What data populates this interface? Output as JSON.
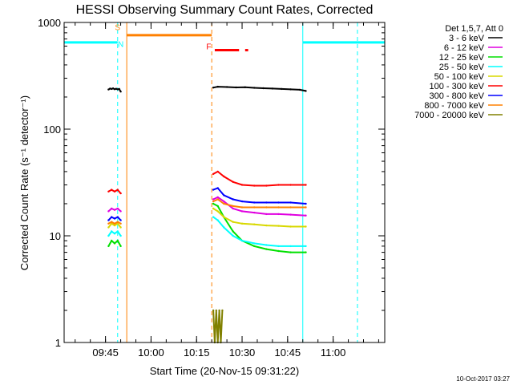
{
  "chart_data": {
    "type": "line",
    "title": "HESSI Observing Summary Count Rates, Corrected",
    "xlabel": "Start Time (20-Nov-15 09:31:22)",
    "ylabel": "Corrected Count Rate (s⁻¹ detector⁻¹)",
    "x_unit": "minutes",
    "xlim": [
      "09:31:22",
      "11:17:00"
    ],
    "ylim": [
      1,
      1000
    ],
    "yscale": "log",
    "x_ticks": [
      "09:45",
      "10:00",
      "10:15",
      "10:30",
      "10:45",
      "11:00"
    ],
    "y_ticks": [
      "1",
      "10",
      "100",
      "1000"
    ],
    "grid": false,
    "legend": {
      "placement": "right",
      "header": "Det 1,5,7, Att 0",
      "entries": [
        {
          "label": "3 - 6 keV",
          "color": "#000000"
        },
        {
          "label": "6 - 12 keV",
          "color": "#e000e0"
        },
        {
          "label": "12 - 25 keV",
          "color": "#00e000"
        },
        {
          "label": "25 - 50 keV",
          "color": "#00ffff"
        },
        {
          "label": "50 - 100 keV",
          "color": "#d8d800"
        },
        {
          "label": "100 - 300 keV",
          "color": "#ff0000"
        },
        {
          "label": "300 - 800 keV",
          "color": "#0000ff"
        },
        {
          "label": "800 - 7000 keV",
          "color": "#ff8000"
        },
        {
          "label": "7000 - 20000 keV",
          "color": "#808000"
        }
      ]
    },
    "series": [
      {
        "name": "3 - 6 keV",
        "color": "#000000",
        "segments": [
          {
            "x": [
              "09:46:00",
              "09:46:30",
              "09:47:00",
              "09:47:30",
              "09:48:00",
              "09:48:30",
              "09:49:00",
              "09:49:30",
              "09:50:00"
            ],
            "y": [
              235,
              240,
              238,
              241,
              237,
              239,
              236,
              238,
              225
            ]
          },
          {
            "x": [
              "10:20:30",
              "10:22:00",
              "10:25:00",
              "10:28:00",
              "10:31:00",
              "10:34:00",
              "10:37:00",
              "10:40:00",
              "10:43:00",
              "10:46:00",
              "10:49:00",
              "10:51:00"
            ],
            "y": [
              245,
              250,
              248,
              246,
              247,
              244,
              242,
              240,
              238,
              236,
              234,
              228
            ]
          }
        ]
      },
      {
        "name": "6 - 12 keV",
        "color": "#e000e0",
        "segments": [
          {
            "x": [
              "09:46:00",
              "09:47:00",
              "09:48:00",
              "09:49:00",
              "09:50:00"
            ],
            "y": [
              17,
              18,
              17.5,
              18,
              17
            ]
          },
          {
            "x": [
              "10:20:30",
              "10:22:00",
              "10:24:00",
              "10:27:00",
              "10:30:00",
              "10:34:00",
              "10:38:00",
              "10:42:00",
              "10:46:00",
              "10:51:00"
            ],
            "y": [
              22,
              23,
              21,
              18,
              17,
              16.5,
              16,
              16,
              15.8,
              15.5
            ]
          }
        ]
      },
      {
        "name": "12 - 25 keV",
        "color": "#00e000",
        "segments": [
          {
            "x": [
              "09:46:00",
              "09:47:00",
              "09:48:00",
              "09:49:00",
              "09:50:00"
            ],
            "y": [
              8,
              9,
              8.5,
              9,
              8
            ]
          },
          {
            "x": [
              "10:20:30",
              "10:22:00",
              "10:24:00",
              "10:27:00",
              "10:30:00",
              "10:34:00",
              "10:38:00",
              "10:42:00",
              "10:46:00",
              "10:51:00"
            ],
            "y": [
              20,
              19,
              15,
              11,
              9,
              8,
              7.5,
              7.2,
              7,
              7
            ]
          }
        ]
      },
      {
        "name": "25 - 50 keV",
        "color": "#00ffff",
        "segments": [
          {
            "x": [
              "09:46:00",
              "09:47:00",
              "09:48:00",
              "09:49:00",
              "09:50:00"
            ],
            "y": [
              10,
              11,
              10.5,
              11,
              10
            ]
          },
          {
            "x": [
              "10:20:30",
              "10:22:00",
              "10:24:00",
              "10:27:00",
              "10:30:00",
              "10:34:00",
              "10:38:00",
              "10:42:00",
              "10:46:00",
              "10:51:00"
            ],
            "y": [
              15,
              14,
              12,
              10,
              9,
              8.5,
              8.2,
              8,
              8,
              8
            ]
          }
        ]
      },
      {
        "name": "50 - 100 keV",
        "color": "#d8d800",
        "segments": [
          {
            "x": [
              "09:46:00",
              "09:47:00",
              "09:48:00",
              "09:49:00",
              "09:50:00"
            ],
            "y": [
              12,
              13,
              12.5,
              13,
              12
            ]
          },
          {
            "x": [
              "10:20:30",
              "10:22:00",
              "10:24:00",
              "10:27:00",
              "10:30:00",
              "10:34:00",
              "10:38:00",
              "10:42:00",
              "10:46:00",
              "10:51:00"
            ],
            "y": [
              18,
              17,
              15,
              13.5,
              13,
              12.8,
              12.5,
              12.4,
              12.2,
              12.2
            ]
          }
        ]
      },
      {
        "name": "100 - 300 keV",
        "color": "#ff0000",
        "segments": [
          {
            "x": [
              "09:46:00",
              "09:47:00",
              "09:48:00",
              "09:49:00",
              "09:50:00"
            ],
            "y": [
              26,
              27,
              26,
              27,
              25
            ]
          },
          {
            "x": [
              "10:20:30",
              "10:22:00",
              "10:24:00",
              "10:27:00",
              "10:30:00",
              "10:34:00",
              "10:38:00",
              "10:42:00",
              "10:46:00",
              "10:51:00"
            ],
            "y": [
              38,
              40,
              36,
              32,
              30,
              29.5,
              29.5,
              30,
              30,
              30
            ]
          }
        ]
      },
      {
        "name": "300 - 800 keV",
        "color": "#0000ff",
        "segments": [
          {
            "x": [
              "09:46:00",
              "09:47:00",
              "09:48:00",
              "09:49:00",
              "09:50:00"
            ],
            "y": [
              14,
              15,
              14.5,
              15,
              14
            ]
          },
          {
            "x": [
              "10:20:30",
              "10:22:00",
              "10:24:00",
              "10:27:00",
              "10:30:00",
              "10:34:00",
              "10:38:00",
              "10:42:00",
              "10:46:00",
              "10:51:00"
            ],
            "y": [
              27,
              28,
              24,
              22,
              21,
              20.5,
              20.5,
              20.5,
              20.5,
              20
            ]
          }
        ]
      },
      {
        "name": "800 - 7000 keV",
        "color": "#ff8000",
        "segments": [
          {
            "x": [
              "09:46:00",
              "09:47:00",
              "09:48:00",
              "09:49:00",
              "09:50:00"
            ],
            "y": [
              13,
              13.5,
              13,
              13.5,
              13
            ]
          },
          {
            "x": [
              "10:20:30",
              "10:22:00",
              "10:24:00",
              "10:27:00",
              "10:30:00",
              "10:34:00",
              "10:38:00",
              "10:42:00",
              "10:46:00",
              "10:51:00"
            ],
            "y": [
              21,
              22,
              20,
              19,
              18.5,
              18.5,
              18.5,
              18.5,
              18.5,
              18.5
            ]
          }
        ]
      },
      {
        "name": "7000 - 20000 keV",
        "color": "#808000",
        "segments": [
          {
            "x": [
              "10:20:30",
              "10:21:00",
              "10:21:30",
              "10:22:00",
              "10:22:30",
              "10:23:00",
              "10:23:30"
            ],
            "y": [
              2,
              1,
              2,
              1,
              2,
              1,
              2
            ]
          }
        ]
      }
    ],
    "markers": {
      "vertical_lines": [
        {
          "x": "09:31:22",
          "color": "#00ffff",
          "style": "solid"
        },
        {
          "x": "09:49:00",
          "color": "#00ffff",
          "style": "dashed"
        },
        {
          "x": "09:52:00",
          "color": "#ff8000",
          "style": "solid"
        },
        {
          "x": "10:20:00",
          "color": "#ff8000",
          "style": "dashed"
        },
        {
          "x": "10:50:00",
          "color": "#00ffff",
          "style": "solid"
        },
        {
          "x": "11:08:00",
          "color": "#00ffff",
          "style": "dashed"
        }
      ],
      "horizontal_segments": [
        {
          "x1": "09:31:22",
          "x2": "09:49:00",
          "y": 650,
          "color": "#00ffff",
          "width": 3
        },
        {
          "x1": "09:52:00",
          "x2": "10:20:00",
          "y": 760,
          "color": "#ff8000",
          "width": 3
        },
        {
          "x1": "10:21:00",
          "x2": "10:29:00",
          "y": 550,
          "color": "#ff0000",
          "width": 3
        },
        {
          "x1": "10:31:00",
          "x2": "10:32:00",
          "y": 550,
          "color": "#ff0000",
          "width": 3
        },
        {
          "x1": "10:50:00",
          "x2": "11:17:00",
          "y": 650,
          "color": "#00ffff",
          "width": 3
        }
      ],
      "labels": [
        {
          "text": "S",
          "x": "09:49:00",
          "y": 850,
          "color": "#ff8000"
        },
        {
          "text": "N",
          "x": "09:50:00",
          "y": 590,
          "color": "#00ffff"
        },
        {
          "text": "F",
          "x": "10:19:00",
          "y": 560,
          "color": "#ff0000"
        }
      ]
    }
  },
  "footer": {
    "timestamp": "10-Oct-2017 03:27"
  }
}
